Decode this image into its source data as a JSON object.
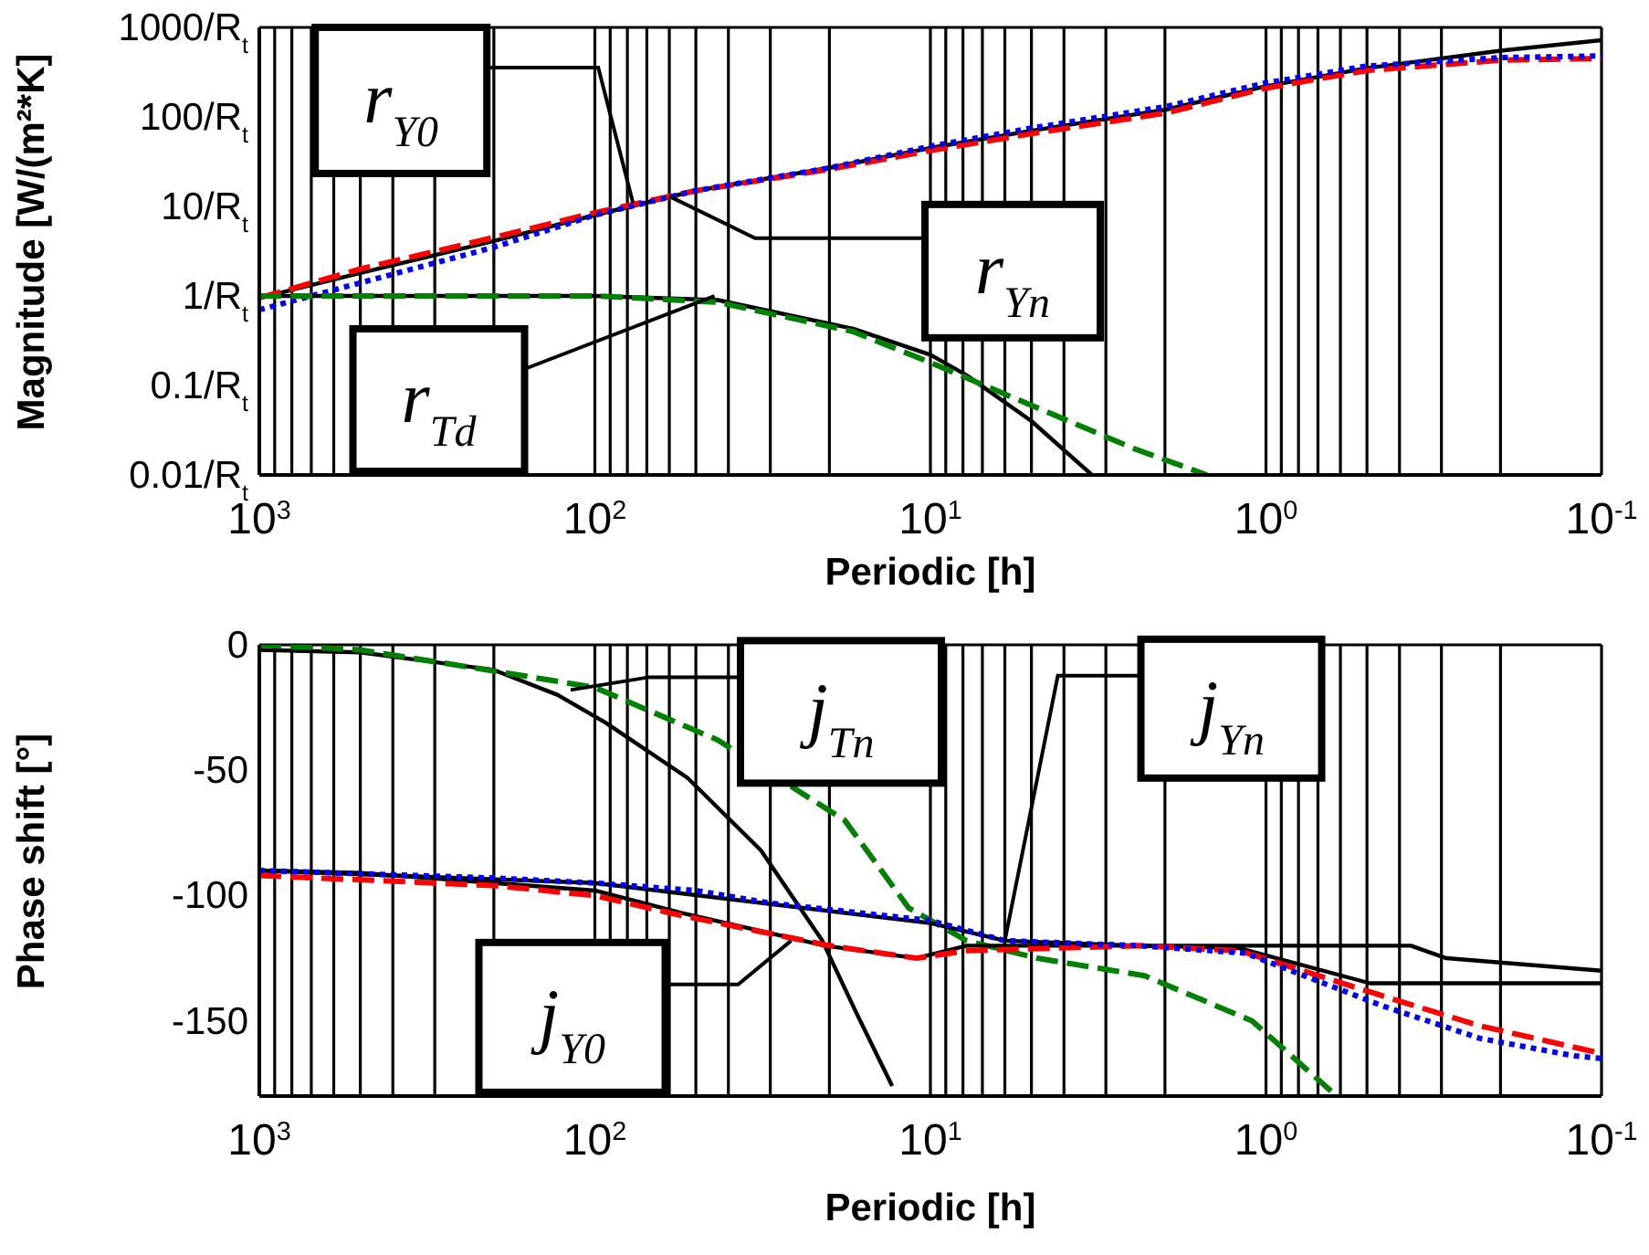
{
  "chart_data": [
    {
      "type": "line",
      "xlabel": "Periodic [h]",
      "ylabel": "Magnitude [W/(m²*K]",
      "log": "xy",
      "grid": true,
      "xlim": [
        1000,
        0.1
      ],
      "ylim": [
        0.01,
        1000
      ],
      "xticks": [
        {
          "value": 1000,
          "label": "10$^{3}$"
        },
        {
          "value": 900,
          "label": null
        },
        {
          "value": 800,
          "label": null
        },
        {
          "value": 700,
          "label": null
        },
        {
          "value": 600,
          "label": null
        },
        {
          "value": 500,
          "label": null
        },
        {
          "value": 400,
          "label": null
        },
        {
          "value": 300,
          "label": null
        },
        {
          "value": 200,
          "label": null
        },
        {
          "value": 100,
          "label": "10$^{2}$"
        },
        {
          "value": 90,
          "label": null
        },
        {
          "value": 80,
          "label": null
        },
        {
          "value": 70,
          "label": null
        },
        {
          "value": 60,
          "label": null
        },
        {
          "value": 50,
          "label": null
        },
        {
          "value": 40,
          "label": null
        },
        {
          "value": 30,
          "label": null
        },
        {
          "value": 20,
          "label": null
        },
        {
          "value": 10,
          "label": "10$^{1}$"
        },
        {
          "value": 9,
          "label": null
        },
        {
          "value": 8,
          "label": null
        },
        {
          "value": 7,
          "label": null
        },
        {
          "value": 6,
          "label": null
        },
        {
          "value": 5,
          "label": null
        },
        {
          "value": 4,
          "label": null
        },
        {
          "value": 3,
          "label": null
        },
        {
          "value": 2,
          "label": null
        },
        {
          "value": 1,
          "label": "10$^{0}$"
        },
        {
          "value": 0.9,
          "label": null
        },
        {
          "value": 0.8,
          "label": null
        },
        {
          "value": 0.7,
          "label": null
        },
        {
          "value": 0.6,
          "label": null
        },
        {
          "value": 0.5,
          "label": null
        },
        {
          "value": 0.4,
          "label": null
        },
        {
          "value": 0.3,
          "label": null
        },
        {
          "value": 0.2,
          "label": null
        },
        {
          "value": 0.1,
          "label": "10$^{-1}$"
        }
      ],
      "yticks": [
        {
          "value": 1000,
          "label": "1000/R$_{t}$"
        },
        {
          "value": 100,
          "label": "100/R$_{t}$"
        },
        {
          "value": 10,
          "label": "10/R$_{t}$"
        },
        {
          "value": 1,
          "label": "1/R$_{t}$"
        },
        {
          "value": 0.1,
          "label": "0.1/R$_{t}$"
        },
        {
          "value": 0.01,
          "label": "0.01/R$_{t}$"
        }
      ],
      "series": [
        {
          "color": "#000000",
          "line_style": "solid",
          "x": [
            1000,
            500,
            200,
            100,
            50,
            20,
            10,
            5,
            2,
            1,
            0.5,
            0.2,
            0.1
          ],
          "values": [
            0.95,
            1.8,
            4.1,
            8,
            15,
            27,
            45,
            70,
            120,
            220,
            350,
            550,
            720
          ]
        },
        {
          "color": "#ff0000",
          "line_style": "dashed",
          "x": [
            1000,
            500,
            200,
            100,
            50,
            20,
            10,
            5,
            2,
            1,
            0.5,
            0.2,
            0.1
          ],
          "values": [
            0.95,
            2,
            4.5,
            8.5,
            15,
            26,
            42,
            65,
            110,
            210,
            330,
            430,
            450
          ]
        },
        {
          "color": "#0000ff",
          "line_style": "dotted",
          "x": [
            1000,
            500,
            200,
            100,
            50,
            20,
            10,
            5,
            2,
            1,
            0.5,
            0.2,
            0.1
          ],
          "values": [
            0.7,
            1.4,
            3.5,
            8,
            15,
            27,
            47,
            75,
            130,
            240,
            370,
            460,
            480
          ]
        },
        {
          "color": "#000000",
          "line_style": "solid",
          "x": [
            1000,
            200,
            100,
            43,
            17,
            10,
            7.8,
            5,
            3.3
          ],
          "values": [
            1,
            1,
            1,
            0.9,
            0.43,
            0.22,
            0.13,
            0.04,
            0.01
          ]
        },
        {
          "color": "#008000",
          "line_style": "dashed",
          "x": [
            1000,
            100,
            43,
            17,
            10,
            5,
            2.5,
            1.5
          ],
          "values": [
            1,
            1,
            0.85,
            0.4,
            0.18,
            0.06,
            0.02,
            0.01
          ]
        }
      ],
      "annotations": [
        {
          "text": "r$_{Y0}$",
          "x": 77,
          "y": 11
        },
        {
          "text": "r$_{Yn}$",
          "x": 60,
          "y": 13
        },
        {
          "text": "r$_{Td}$",
          "x": 44,
          "y": 1
        }
      ]
    },
    {
      "type": "line",
      "xlabel": "Periodic [h]",
      "ylabel": "Phase shift [°]",
      "log": "x",
      "grid": true,
      "xlim": [
        1000,
        0.1
      ],
      "ylim": [
        -180,
        0
      ],
      "xticks": [
        {
          "value": 1000,
          "label": "10$^{3}$"
        },
        {
          "value": 900,
          "label": null
        },
        {
          "value": 800,
          "label": null
        },
        {
          "value": 700,
          "label": null
        },
        {
          "value": 600,
          "label": null
        },
        {
          "value": 500,
          "label": null
        },
        {
          "value": 400,
          "label": null
        },
        {
          "value": 300,
          "label": null
        },
        {
          "value": 200,
          "label": null
        },
        {
          "value": 100,
          "label": "10$^{2}$"
        },
        {
          "value": 90,
          "label": null
        },
        {
          "value": 80,
          "label": null
        },
        {
          "value": 70,
          "label": null
        },
        {
          "value": 60,
          "label": null
        },
        {
          "value": 50,
          "label": null
        },
        {
          "value": 40,
          "label": null
        },
        {
          "value": 30,
          "label": null
        },
        {
          "value": 20,
          "label": null
        },
        {
          "value": 10,
          "label": "10$^{1}$"
        },
        {
          "value": 9,
          "label": null
        },
        {
          "value": 8,
          "label": null
        },
        {
          "value": 7,
          "label": null
        },
        {
          "value": 6,
          "label": null
        },
        {
          "value": 5,
          "label": null
        },
        {
          "value": 4,
          "label": null
        },
        {
          "value": 3,
          "label": null
        },
        {
          "value": 2,
          "label": null
        },
        {
          "value": 1,
          "label": "10$^{0}$"
        },
        {
          "value": 0.9,
          "label": null
        },
        {
          "value": 0.8,
          "label": null
        },
        {
          "value": 0.7,
          "label": null
        },
        {
          "value": 0.6,
          "label": null
        },
        {
          "value": 0.5,
          "label": null
        },
        {
          "value": 0.4,
          "label": null
        },
        {
          "value": 0.3,
          "label": null
        },
        {
          "value": 0.2,
          "label": null
        },
        {
          "value": 0.1,
          "label": "10$^{-1}$"
        }
      ],
      "yticks": [
        0,
        -50,
        -100,
        -150
      ],
      "series": [
        {
          "color": "#000000",
          "line_style": "solid",
          "x": [
            1000,
            500,
            200,
            129,
            93,
            53,
            32,
            21,
            16.6,
            13
          ],
          "values": [
            -2,
            -3,
            -10,
            -20,
            -31,
            -53,
            -82,
            -118,
            -147,
            -176
          ]
        },
        {
          "color": "#008000",
          "line_style": "dashed",
          "x": [
            1000,
            500,
            209,
            100,
            43,
            18,
            11.6,
            7.8,
            4.8,
            2.3,
            1.1,
            0.64
          ],
          "values": [
            0,
            -2,
            -10,
            -17,
            -38,
            -70,
            -105,
            -118,
            -125,
            -132,
            -150,
            -178
          ]
        },
        {
          "color": "#000000",
          "line_style": "solid",
          "x": [
            1000,
            500,
            200,
            100,
            55,
            20.6,
            11,
            7.8,
            2.4,
            1.2,
            0.49,
            0.1
          ],
          "values": [
            -90,
            -91,
            -95,
            -98,
            -107,
            -120,
            -125,
            -120,
            -120,
            -121,
            -135,
            -135
          ]
        },
        {
          "color": "#000000",
          "line_style": "solid",
          "x": [
            1000,
            100,
            10,
            6,
            2.4,
            0.37,
            0.29,
            0.1
          ],
          "values": [
            -90,
            -95,
            -111,
            -118,
            -120,
            -120,
            -125,
            -130
          ]
        },
        {
          "color": "#ff0000",
          "line_style": "dashed",
          "x": [
            1000,
            200,
            100,
            55,
            20,
            11,
            7.8,
            2.4,
            1.2,
            0.45,
            0.23,
            0.1
          ],
          "values": [
            -92,
            -96,
            -100,
            -108,
            -120,
            -125,
            -122,
            -120,
            -122,
            -140,
            -152,
            -163
          ]
        },
        {
          "color": "#0000ff",
          "line_style": "dotted",
          "x": [
            1000,
            200,
            100,
            50,
            30,
            10,
            6,
            2.4,
            1.15,
            0.45,
            0.23,
            0.12,
            0.1
          ],
          "values": [
            -90,
            -93,
            -95,
            -98,
            -103,
            -110,
            -118,
            -120,
            -123,
            -144,
            -157,
            -164,
            -165
          ]
        }
      ],
      "annotations": [
        "j$_{Tn}$",
        {
          "text": "j$_{Yn}$",
          "x": 6,
          "y": -118
        },
        {
          "text": "j$_{Y0}$",
          "x": 26,
          "y": -118
        }
      ]
    }
  ]
}
